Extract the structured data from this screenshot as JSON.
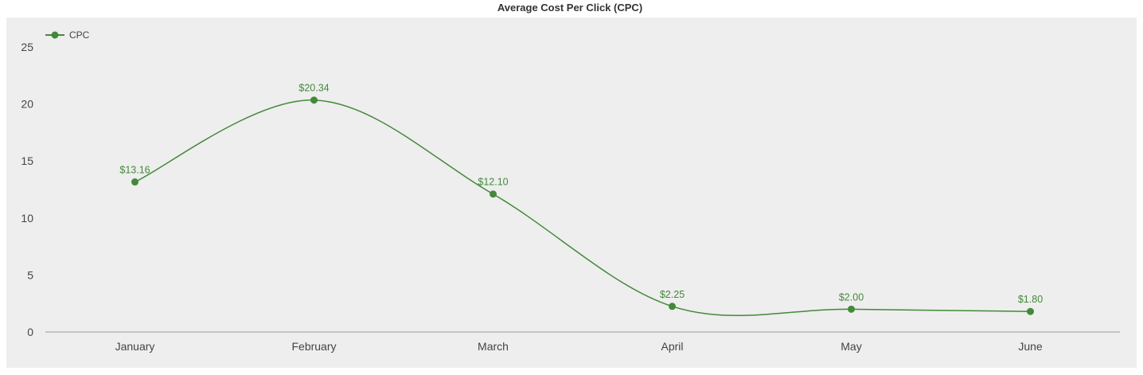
{
  "chart_data": {
    "type": "line",
    "title": "Average Cost Per Click (CPC)",
    "xlabel": "",
    "ylabel": "",
    "categories": [
      "January",
      "February",
      "March",
      "April",
      "May",
      "June"
    ],
    "series": [
      {
        "name": "CPC",
        "values": [
          13.16,
          20.34,
          12.1,
          2.25,
          2.0,
          1.8
        ],
        "labels": [
          "$13.16",
          "$20.34",
          "$12.10",
          "$2.25",
          "$2.00",
          "$1.80"
        ],
        "color": "#43893a"
      }
    ],
    "ylim": [
      0,
      25
    ],
    "yticks": [
      "0",
      "5",
      "10",
      "15",
      "20",
      "25"
    ],
    "smooth": true,
    "grid": false,
    "legend_position": "top-left",
    "colors": {
      "plot_background": "#eeeeee",
      "axis": "#999999"
    }
  }
}
